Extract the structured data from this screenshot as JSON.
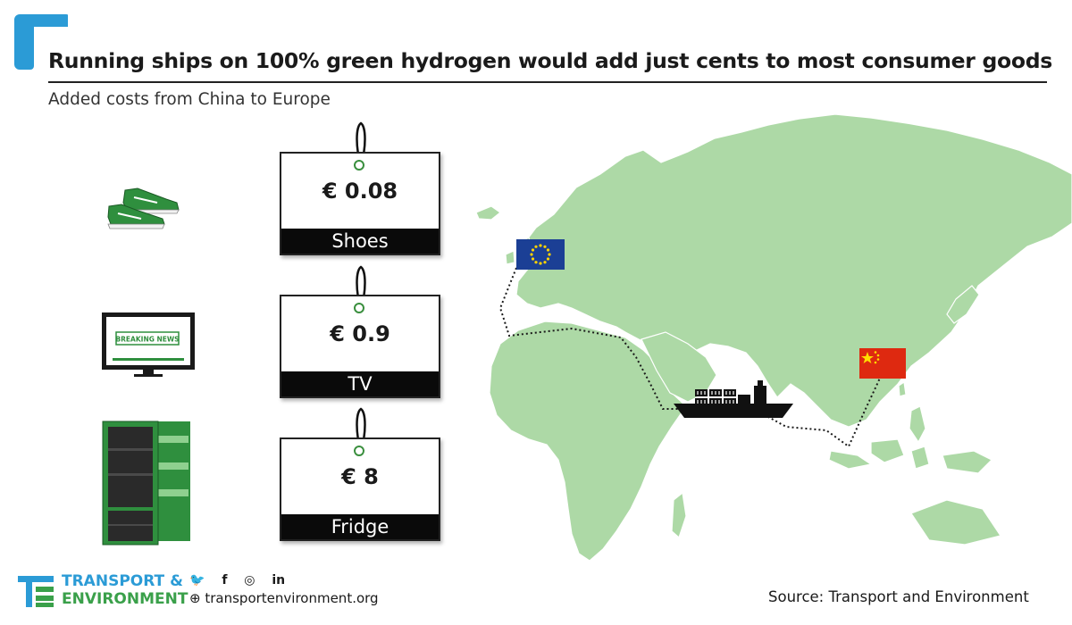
{
  "header": {
    "title": "Running ships on 100% green hydrogen would add just cents to most consumer goods",
    "subtitle": "Added costs from China to Europe"
  },
  "items": [
    {
      "icon": "shoes-icon",
      "price": "€ 0.08",
      "label": "Shoes"
    },
    {
      "icon": "tv-icon",
      "price": "€ 0.9",
      "label": "TV",
      "tv_screen_text": "BREAKING NEWS"
    },
    {
      "icon": "fridge-icon",
      "price": "€ 8",
      "label": "Fridge"
    }
  ],
  "map": {
    "origin_flag": "china-flag-icon",
    "destination_flag": "eu-flag-icon",
    "vehicle": "container-ship-icon"
  },
  "footer": {
    "brand_line1": "TRANSPORT &",
    "brand_line2": "ENVIRONMENT",
    "social": [
      "twitter-icon",
      "facebook-icon",
      "instagram-icon",
      "linkedin-icon"
    ],
    "website": "transportenvironment.org",
    "source": "Source: Transport and Environment"
  },
  "colors": {
    "accent_blue": "#2b9bd6",
    "accent_green": "#3aa04a",
    "map_land": "#add9a6",
    "product_green": "#2f8f3e"
  }
}
